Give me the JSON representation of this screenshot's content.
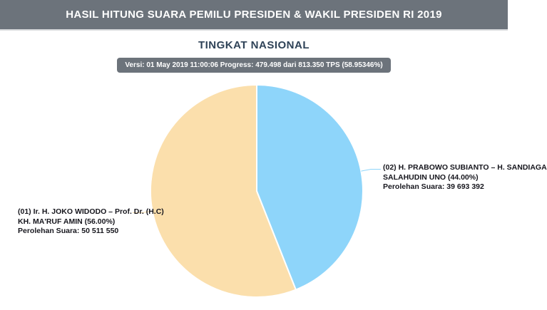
{
  "header": {
    "title": "HASIL HITUNG SUARA PEMILU PRESIDEN & WAKIL PRESIDEN RI 2019"
  },
  "page": {
    "title": "TINGKAT NASIONAL",
    "version_bar": "Versi: 01 May 2019 11:00:06 Progress: 479.498 dari 813.350 TPS (58.95346%)"
  },
  "theme": {
    "header_bg": "#6C737B",
    "title_color": "#2E4257",
    "label_color": "#16161D"
  },
  "chart_data": {
    "type": "pie",
    "title": "TINGKAT NASIONAL",
    "legend_position": "none",
    "start_angle_deg": 0,
    "direction": "clockwise-from-top",
    "slices": [
      {
        "id": "01",
        "name": "(01) Ir. H. JOKO WIDODO – Prof. Dr. (H.C) KH. MA'RUF AMIN",
        "value": 50511550,
        "pct": 56.0,
        "color": "#FBDFAC",
        "start_angle_deg": 158.4,
        "end_angle_deg": 360,
        "label_lines": [
          "(01) Ir. H. JOKO WIDODO – Prof. Dr. (H.C)",
          "KH. MA'RUF AMIN (56.00%)",
          "Perolehan Suara: 50 511 550"
        ]
      },
      {
        "id": "02",
        "name": "(02) H. PRABOWO SUBIANTO – H. SANDIAGA SALAHUDIN UNO",
        "value": 39693392,
        "pct": 44.0,
        "color": "#8ED5FA",
        "start_angle_deg": 0,
        "end_angle_deg": 158.4,
        "label_lines": [
          "(02) H. PRABOWO SUBIANTO – H. SANDIAGA",
          "SALAHUDIN UNO (44.00%)",
          "Perolehan Suara: 39 693 392"
        ]
      }
    ]
  }
}
